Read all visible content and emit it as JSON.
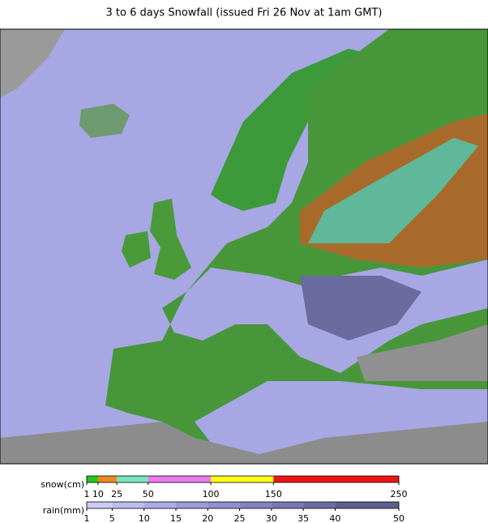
{
  "title": "3 to 6 days Snowfall (issued Fri 26 Nov at 1am GMT)",
  "legend": {
    "snow": {
      "label": "snow(cm)",
      "lim": [
        1,
        250
      ],
      "ticks": [
        1,
        10,
        25,
        50,
        100,
        150,
        250
      ],
      "colors": [
        "#22c822",
        "#ee8a1e",
        "#78e6c0",
        "#ee78ee",
        "#ffff14",
        "#f01414"
      ]
    },
    "rain": {
      "label": "rain(mm)",
      "lim": [
        1,
        50
      ],
      "ticks": [
        1,
        5,
        10,
        15,
        20,
        25,
        30,
        35,
        40,
        50
      ],
      "colors": [
        "#ccccf4",
        "#bcbcee",
        "#acace6",
        "#9c9cdc",
        "#8e8ed0",
        "#8282c2",
        "#7878b4",
        "#6c6ca4",
        "#5e5e90"
      ]
    }
  }
}
